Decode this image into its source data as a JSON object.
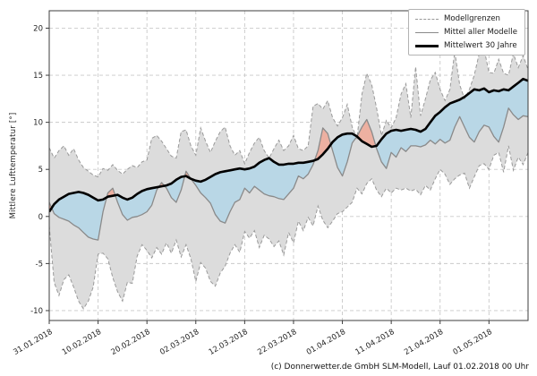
{
  "legend": {
    "items": [
      {
        "label": "Modellgrenzen",
        "style": "dashed-gray"
      },
      {
        "label": "Mittel aller Modelle",
        "style": "solid-gray"
      },
      {
        "label": "Mittelwert 30 Jahre",
        "style": "thick-black"
      }
    ]
  },
  "footer": {
    "credit": "(c) Donnerwetter.de GmbH SLM-Modell, Lauf 01.02.2018 00 Uhr"
  },
  "chart_data": {
    "type": "line",
    "title": "",
    "xlabel": "",
    "ylabel": "Mittlere Lufttemperatur [°]",
    "grid": true,
    "legend_position": "upper right",
    "ylim": [
      -11.05,
      21.85
    ],
    "x_range": [
      0,
      98
    ],
    "x_unit": "days since 31.01.2018",
    "yticks": [
      -10,
      -5,
      0,
      5,
      10,
      15,
      20
    ],
    "xticks": {
      "days": [
        0,
        10,
        20,
        30,
        40,
        50,
        60,
        70,
        80,
        90
      ],
      "labels": [
        "31.01.2018",
        "10.02.2018",
        "20.02.2018",
        "02.03.2018",
        "12.03.2018",
        "22.03.2018",
        "01.04.2018",
        "11.04.2018",
        "21.04.2018",
        "01.05.2018"
      ]
    },
    "colors": {
      "band_fill": "#dcdcdc",
      "band_edge": "#9a9a9a",
      "model_mean_line": "#8a8a8a",
      "mean30_line": "#000000",
      "above_normal_fill": "#f0a896",
      "below_normal_fill": "#b3d6e8",
      "grid": "#c9c9c9",
      "spine": "#3c3c3c",
      "tick_text": "#262626"
    },
    "series": [
      {
        "name": "Modellgrenzen (Obergrenze)",
        "role": "band_upper",
        "line": "dashed",
        "values": [
          7.3,
          6.2,
          7.0,
          7.5,
          6.5,
          7.2,
          6.0,
          5.2,
          4.8,
          4.4,
          4.2,
          5.1,
          4.9,
          5.5,
          4.9,
          4.5,
          5.0,
          5.4,
          5.2,
          5.8,
          6.0,
          8.3,
          8.6,
          8.0,
          7.2,
          6.4,
          6.2,
          9.0,
          9.2,
          7.5,
          6.5,
          9.4,
          8.0,
          6.8,
          8.0,
          9.0,
          9.5,
          7.5,
          6.5,
          7.0,
          5.6,
          6.8,
          7.8,
          8.4,
          7.0,
          6.2,
          7.2,
          8.1,
          7.0,
          7.5,
          8.6,
          7.2,
          7.0,
          7.5,
          11.7,
          12.0,
          11.4,
          12.3,
          10.5,
          9.6,
          10.5,
          11.9,
          9.5,
          8.3,
          13.0,
          15.2,
          14.0,
          11.5,
          8.6,
          10.2,
          9.4,
          10.5,
          13.0,
          14.1,
          10.5,
          15.9,
          10.7,
          12.5,
          14.5,
          15.3,
          13.5,
          12.3,
          13.5,
          17.5,
          14.0,
          12.5,
          13.5,
          15.0,
          17.3,
          17.8,
          15.3,
          15.2,
          16.7,
          15.2,
          15.0,
          17.3,
          15.8,
          17.1,
          15.6
        ]
      },
      {
        "name": "Modellgrenzen (Untergrenze)",
        "role": "band_lower",
        "line": "dashed",
        "values": [
          -1.0,
          -7.0,
          -8.4,
          -6.7,
          -6.2,
          -7.5,
          -9.0,
          -9.8,
          -9.0,
          -7.5,
          -4.0,
          -3.9,
          -4.5,
          -6.5,
          -8.0,
          -9.0,
          -7.0,
          -7.1,
          -4.2,
          -3.0,
          -3.6,
          -4.4,
          -3.3,
          -4.0,
          -2.8,
          -3.9,
          -2.5,
          -4.3,
          -3.0,
          -4.5,
          -6.9,
          -4.9,
          -5.5,
          -6.9,
          -7.4,
          -6.0,
          -5.3,
          -3.9,
          -3.0,
          -3.8,
          -1.6,
          -2.3,
          -1.5,
          -3.3,
          -2.0,
          -2.4,
          -3.2,
          -2.6,
          -4.1,
          -1.7,
          -2.8,
          -0.5,
          -1.5,
          -0.1,
          -1.0,
          1.1,
          -0.4,
          -1.2,
          -0.5,
          0.3,
          0.5,
          1.0,
          1.5,
          3.0,
          2.4,
          3.5,
          4.0,
          2.8,
          2.1,
          3.0,
          2.5,
          3.0,
          2.8,
          3.0,
          2.7,
          2.9,
          2.3,
          3.3,
          2.8,
          4.0,
          5.0,
          4.5,
          3.4,
          4.0,
          4.4,
          4.6,
          3.0,
          4.2,
          5.4,
          5.6,
          5.0,
          6.5,
          6.8,
          4.7,
          7.5,
          4.9,
          6.3,
          5.5,
          6.8
        ]
      },
      {
        "name": "Mittel aller Modelle",
        "role": "model_mean",
        "line": "solid",
        "values": [
          1.5,
          0.3,
          -0.1,
          -0.3,
          -0.5,
          -0.9,
          -1.2,
          -1.7,
          -2.2,
          -2.4,
          -2.5,
          0.5,
          2.5,
          3.0,
          1.5,
          0.2,
          -0.4,
          -0.1,
          0.0,
          0.2,
          0.5,
          1.2,
          2.8,
          3.6,
          3.0,
          2.0,
          1.5,
          2.8,
          4.8,
          4.0,
          3.3,
          2.5,
          2.0,
          1.4,
          0.2,
          -0.5,
          -0.7,
          0.5,
          1.5,
          1.8,
          3.0,
          2.5,
          3.2,
          2.8,
          2.4,
          2.2,
          2.1,
          1.9,
          1.8,
          2.4,
          3.0,
          4.3,
          4.0,
          4.5,
          5.5,
          7.0,
          9.4,
          8.8,
          7.0,
          5.2,
          4.3,
          5.8,
          7.8,
          8.5,
          9.5,
          10.3,
          9.0,
          7.2,
          5.8,
          5.1,
          6.8,
          6.3,
          7.3,
          6.9,
          7.5,
          7.5,
          7.4,
          7.6,
          8.1,
          7.7,
          8.2,
          7.8,
          8.1,
          9.5,
          10.6,
          9.5,
          8.4,
          7.9,
          9.0,
          9.7,
          9.5,
          8.5,
          7.9,
          9.5,
          11.5,
          10.8,
          10.3,
          10.7,
          10.6
        ]
      },
      {
        "name": "Mittelwert 30 Jahre",
        "role": "mean_30y",
        "line": "thick",
        "values": [
          0.5,
          1.3,
          1.8,
          2.1,
          2.4,
          2.5,
          2.6,
          2.5,
          2.3,
          2.0,
          1.7,
          1.8,
          2.1,
          2.2,
          2.3,
          2.0,
          1.8,
          2.0,
          2.4,
          2.7,
          2.9,
          3.0,
          3.1,
          3.2,
          3.3,
          3.5,
          3.9,
          4.2,
          4.3,
          4.0,
          3.8,
          3.7,
          3.9,
          4.2,
          4.5,
          4.7,
          4.8,
          4.9,
          5.0,
          5.1,
          5.0,
          5.1,
          5.3,
          5.7,
          6.0,
          6.2,
          5.8,
          5.5,
          5.5,
          5.6,
          5.6,
          5.7,
          5.7,
          5.8,
          5.9,
          6.1,
          6.6,
          7.2,
          7.9,
          8.4,
          8.7,
          8.8,
          8.8,
          8.5,
          8.0,
          7.7,
          7.4,
          7.5,
          8.2,
          8.8,
          9.1,
          9.2,
          9.1,
          9.2,
          9.3,
          9.2,
          9.0,
          9.3,
          10.0,
          10.7,
          11.1,
          11.6,
          12.0,
          12.2,
          12.4,
          12.7,
          13.1,
          13.5,
          13.4,
          13.6,
          13.2,
          13.4,
          13.3,
          13.5,
          13.4,
          13.8,
          14.2,
          14.6,
          14.4
        ]
      }
    ]
  }
}
